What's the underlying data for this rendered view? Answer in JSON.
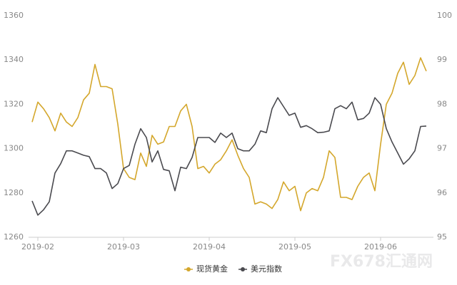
{
  "chart_data": {
    "type": "line",
    "categories": [
      null,
      "2019-02",
      null,
      null,
      null,
      null,
      null,
      null,
      null,
      null,
      null,
      null,
      null,
      null,
      null,
      null,
      "2019-03",
      null,
      null,
      null,
      null,
      null,
      null,
      null,
      null,
      null,
      null,
      null,
      null,
      null,
      null,
      "2019-04",
      null,
      null,
      null,
      null,
      null,
      null,
      null,
      null,
      null,
      null,
      null,
      null,
      null,
      null,
      "2019-05",
      null,
      null,
      null,
      null,
      null,
      null,
      null,
      null,
      null,
      null,
      null,
      null,
      null,
      null,
      "2019-06",
      null,
      null,
      null,
      null,
      null,
      null,
      null,
      null
    ],
    "series": [
      {
        "name": "现货黄金",
        "color": "#d4a72c",
        "axis": "y",
        "values": [
          1312,
          1321,
          1318,
          1314,
          1308,
          1316,
          1312,
          1310,
          1314,
          1322,
          1325,
          1338,
          1328,
          1328,
          1327,
          1311,
          1291,
          1287,
          1286,
          1298,
          1292,
          1306,
          1302,
          1303,
          1310,
          1310,
          1317,
          1320,
          1310,
          1291,
          1292,
          1289,
          1293,
          1295,
          1299,
          1304,
          1297,
          1291,
          1287,
          1275,
          1276,
          1275,
          1273,
          1277,
          1285,
          1281,
          1283,
          1272,
          1280,
          1282,
          1281,
          1287,
          1299,
          1296,
          1278,
          1278,
          1277,
          1283,
          1287,
          1289,
          1281,
          1302,
          1320,
          1325,
          1334,
          1339,
          1329,
          1333,
          1341,
          1335
        ]
      },
      {
        "name": "美元指数",
        "color": "#4a4a4f",
        "axis": "y2",
        "values": [
          95.82,
          95.5,
          95.62,
          95.8,
          96.45,
          96.66,
          96.95,
          96.95,
          96.9,
          96.85,
          96.82,
          96.55,
          96.55,
          96.45,
          96.1,
          96.21,
          96.55,
          96.62,
          97.1,
          97.45,
          97.25,
          96.7,
          96.95,
          96.53,
          96.5,
          96.05,
          96.58,
          96.55,
          96.8,
          97.25,
          97.25,
          97.25,
          97.14,
          97.35,
          97.25,
          97.35,
          97.0,
          96.95,
          96.95,
          97.1,
          97.4,
          97.36,
          97.9,
          98.15,
          97.95,
          97.75,
          97.8,
          97.48,
          97.52,
          97.45,
          97.36,
          97.37,
          97.4,
          97.9,
          97.97,
          97.9,
          98.05,
          97.65,
          97.68,
          97.8,
          98.15,
          98.0,
          97.45,
          97.15,
          96.9,
          96.65,
          96.77,
          96.95,
          97.5,
          97.51
        ]
      }
    ],
    "ylim": [
      1260,
      1360
    ],
    "yticks": [
      1260,
      1280,
      1300,
      1320,
      1340,
      1360
    ],
    "y2lim": [
      95,
      100
    ],
    "y2ticks": [
      95,
      96,
      97,
      98,
      99,
      100
    ],
    "legend": "bottom",
    "watermark": [
      "FX678",
      "汇通网"
    ]
  }
}
